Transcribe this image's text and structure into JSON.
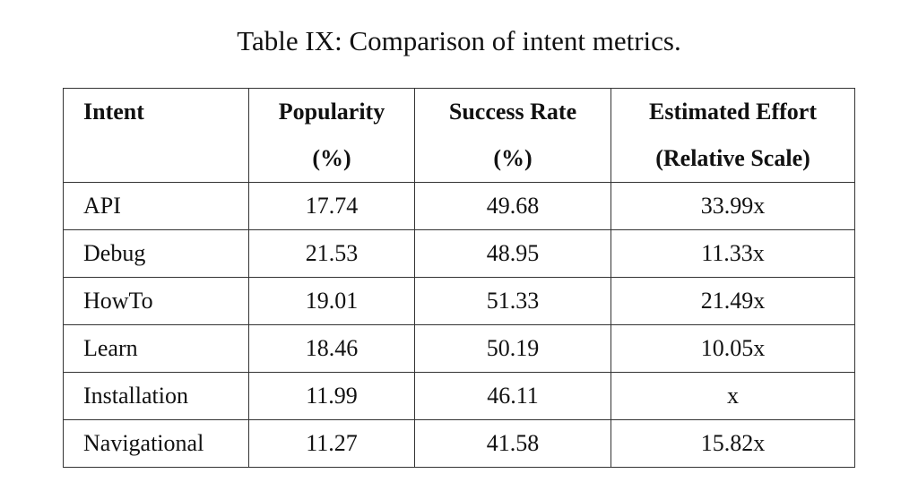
{
  "title": "Table IX: Comparison of intent metrics.",
  "table": {
    "header": [
      [
        "Intent"
      ],
      [
        "Popularity",
        "(%)"
      ],
      [
        "Success Rate",
        "(%)"
      ],
      [
        "Estimated Effort",
        "(Relative Scale)"
      ]
    ],
    "rows": [
      [
        "API",
        "17.74",
        "49.68",
        "33.99x"
      ],
      [
        "Debug",
        "21.53",
        "48.95",
        "11.33x"
      ],
      [
        "HowTo",
        "19.01",
        "51.33",
        "21.49x"
      ],
      [
        "Learn",
        "18.46",
        "50.19",
        "10.05x"
      ],
      [
        "Installation",
        "11.99",
        "46.11",
        "x"
      ],
      [
        "Navigational",
        "11.27",
        "41.58",
        "15.82x"
      ]
    ]
  }
}
